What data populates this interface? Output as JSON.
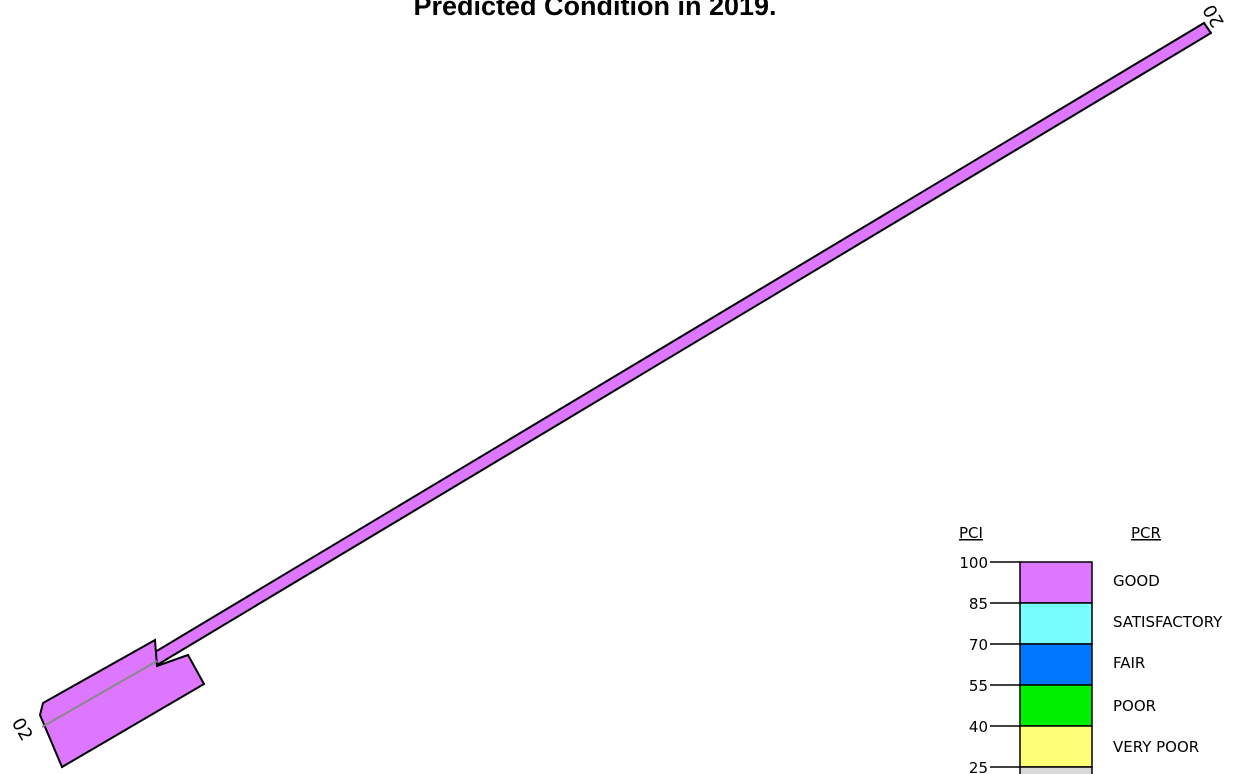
{
  "title": "Predicted Condition in 2019.",
  "runway": {
    "end_label_top": "20",
    "end_label_bottom": "02",
    "condition_color": "#dd77ff"
  },
  "legend": {
    "pci_header": "PCI",
    "pcr_header": "PCR",
    "ticks": [
      "100",
      "85",
      "70",
      "55",
      "40",
      "25"
    ],
    "categories": [
      {
        "label": "GOOD",
        "color": "#dd77ff"
      },
      {
        "label": "SATISFACTORY",
        "color": "#77ffff"
      },
      {
        "label": "FAIR",
        "color": "#0077ff"
      },
      {
        "label": "POOR",
        "color": "#00ee00"
      },
      {
        "label": "VERY POOR",
        "color": "#ffff77"
      }
    ],
    "next_category_color": "#d9d9d9"
  }
}
